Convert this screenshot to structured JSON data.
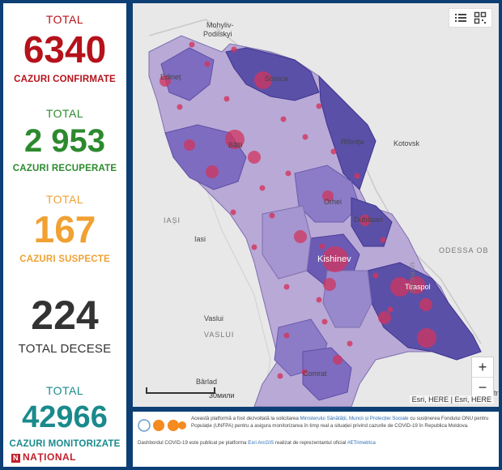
{
  "stats": {
    "confirmed": {
      "label": "TOTAL",
      "value": "6340",
      "sub": "CAZURI CONFIRMATE",
      "color": "#b5121b"
    },
    "recovered": {
      "label": "TOTAL",
      "value": "2 953",
      "sub": "CAZURI RECUPERATE",
      "color": "#2c8a2e"
    },
    "suspect": {
      "label": "TOTAL",
      "value": "167",
      "sub": "CAZURI SUSPECTE",
      "color": "#f0a132"
    },
    "deaths": {
      "value": "224",
      "sub": "TOTAL DECESE",
      "color": "#333333"
    },
    "monitored": {
      "label": "TOTAL",
      "value": "42966",
      "sub": "CAZURI MONITORIZATE",
      "color": "#1a8a8c"
    }
  },
  "brand": {
    "name": "NAȚIONAL"
  },
  "map": {
    "labels": {
      "mohyliv": "Mohyliv-",
      "podilskyi": "Podilskyi",
      "edinet": "Edineț",
      "soroca": "Soroca",
      "balti": "Bălți",
      "ribnita": "Rîbnița",
      "kotovsk": "Kotovsk",
      "orhei": "Orhei",
      "dubasari": "Dubăsari",
      "iasi_upper": "IAȘI",
      "iasi": "Iasi",
      "chisinau": "Kishinev",
      "tiraspol": "Tiraspol",
      "odessa": "ODESSA OB",
      "ukraine": "UKRAINE",
      "vaslui": "Vaslui",
      "vaslui_upper": "VASLUI",
      "comrat": "Comrat",
      "barlad": "Bârlad",
      "district": "Distr"
    },
    "scale_label": "30мили",
    "attribution": "Esri, HERE | Esri, HERE",
    "tools": {
      "list_icon": "list-icon",
      "qr_icon": "qr-code-icon"
    },
    "zoom": {
      "in": "+",
      "out": "−"
    }
  },
  "footer": {
    "line1_a": "Această platformă a fost dezvoltată la solicitarea ",
    "line1_link": "Ministerului Sănătății, Muncii și Protecției Sociale",
    "line1_b": " cu susținerea Fondului ONU pentru Populație (UNFPA) pentru a asigura monitorizarea în timp real a situației privind cazurile de COVID-19 în Republica Moldova.",
    "line2_a": "Dashbordul COVID-19 este publicat pe platforma ",
    "line2_link": "Esri ArcGIS",
    "line2_b": " realizat de reprezentantul oficial ",
    "line2_link2": "#ETrimetrica"
  }
}
